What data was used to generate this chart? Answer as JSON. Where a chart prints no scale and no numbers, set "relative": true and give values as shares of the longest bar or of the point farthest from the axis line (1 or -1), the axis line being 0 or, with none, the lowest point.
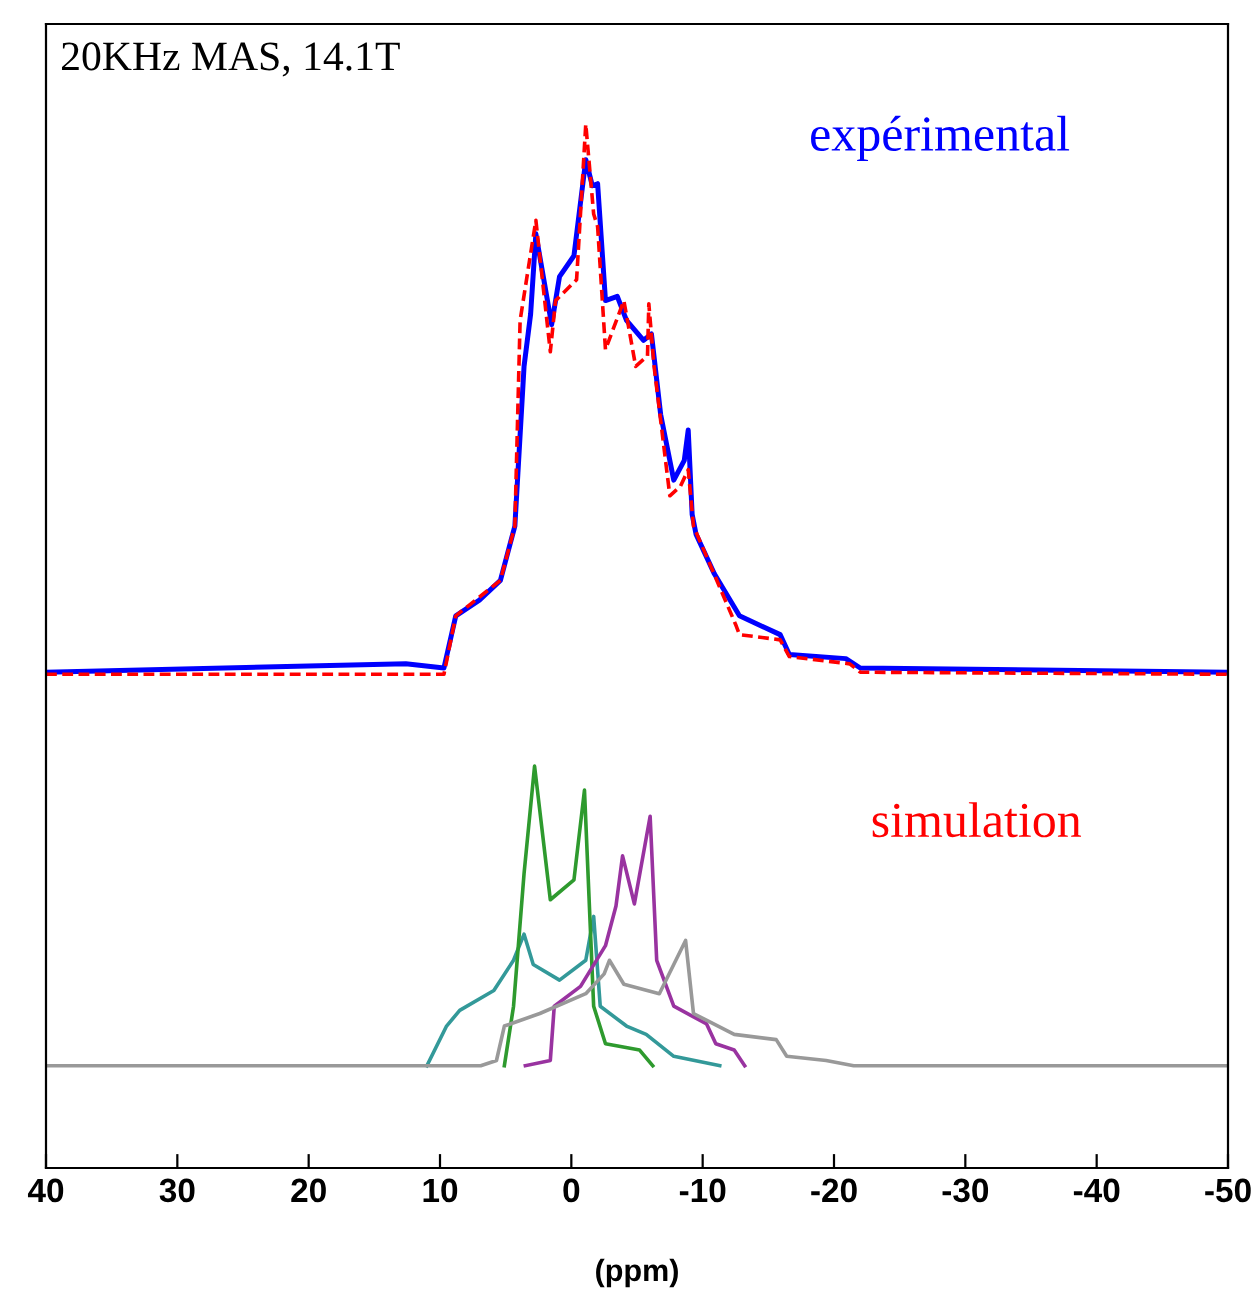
{
  "chart_data": {
    "type": "line",
    "relative": true,
    "xlabel": "(ppm)",
    "annotations": [
      "20KHz MAS, 14.1T"
    ],
    "xlim": [
      40,
      -50
    ],
    "xticks": [
      40,
      30,
      20,
      10,
      0,
      -10,
      -20,
      -30,
      -40,
      -50
    ],
    "tick_labels": "x",
    "grid": false,
    "legend": false,
    "marker": "none",
    "series": [
      {
        "name": "expérimental",
        "color": "#0000ff",
        "line_style": "solid",
        "x": [
          40,
          12.6,
          9.7,
          8.8,
          7.0,
          5.4,
          4.3,
          3.6,
          3.1,
          2.7,
          1.5,
          0.9,
          -0.2,
          -1.1,
          -1.6,
          -2.0,
          -2.6,
          -3.5,
          -4.2,
          -5.5,
          -6.1,
          -6.8,
          -7.8,
          -8.6,
          -8.9,
          -9.2,
          -9.5,
          -10.9,
          -12.8,
          -15.9,
          -16.6,
          -20.9,
          -22.0,
          -50
        ],
        "values": [
          0.475,
          0.483,
          0.479,
          0.529,
          0.544,
          0.563,
          0.615,
          0.768,
          0.818,
          0.895,
          0.808,
          0.854,
          0.874,
          0.966,
          0.941,
          0.943,
          0.831,
          0.835,
          0.812,
          0.793,
          0.799,
          0.722,
          0.659,
          0.678,
          0.707,
          0.626,
          0.607,
          0.569,
          0.529,
          0.511,
          0.492,
          0.488,
          0.479,
          0.475
        ]
      },
      {
        "name": "simulation",
        "color": "#ff0000",
        "line_style": "dashed",
        "x": [
          40,
          9.7,
          8.8,
          5.4,
          4.3,
          3.9,
          2.7,
          1.6,
          1.2,
          -0.4,
          -1.1,
          -1.7,
          -2.0,
          -2.6,
          -4.0,
          -4.9,
          -5.8,
          -5.9,
          -6.3,
          -7.5,
          -8.3,
          -8.9,
          -9.3,
          -10.6,
          -12.5,
          -12.8,
          -15.9,
          -16.6,
          -21.2,
          -22.0,
          -50
        ],
        "values": [
          0.473,
          0.473,
          0.529,
          0.563,
          0.615,
          0.812,
          0.908,
          0.782,
          0.831,
          0.851,
          1.0,
          0.914,
          0.902,
          0.784,
          0.831,
          0.768,
          0.778,
          0.828,
          0.768,
          0.644,
          0.653,
          0.669,
          0.615,
          0.577,
          0.521,
          0.511,
          0.506,
          0.49,
          0.483,
          0.475,
          0.473
        ]
      },
      {
        "color": "#339999",
        "line_style": "solid",
        "x": [
          11.0,
          9.5,
          8.5,
          5.9,
          4.4,
          3.6,
          2.9,
          0.9,
          -1.1,
          -1.7,
          -2.2,
          -4.2,
          -5.7,
          -7.8,
          -11.3
        ],
        "values": [
          0.098,
          0.136,
          0.151,
          0.17,
          0.199,
          0.224,
          0.195,
          0.18,
          0.199,
          0.241,
          0.155,
          0.136,
          0.128,
          0.107,
          0.098
        ]
      },
      {
        "color": "#2e9a2e",
        "line_style": "solid",
        "x": [
          5.1,
          4.4,
          3.6,
          2.8,
          1.6,
          -0.2,
          -1.0,
          -1.7,
          -2.6,
          -5.2,
          -6.2
        ],
        "values": [
          0.098,
          0.155,
          0.282,
          0.385,
          0.257,
          0.276,
          0.362,
          0.155,
          0.119,
          0.113,
          0.098
        ]
      },
      {
        "color": "#9933a0",
        "line_style": "solid",
        "x": [
          3.5,
          1.6,
          1.3,
          -0.7,
          -2.6,
          -3.4,
          -3.9,
          -4.8,
          -6.0,
          -6.5,
          -7.8,
          -10.3,
          -11.0,
          -12.4,
          -13.2
        ],
        "values": [
          0.098,
          0.103,
          0.155,
          0.174,
          0.213,
          0.251,
          0.299,
          0.253,
          0.337,
          0.199,
          0.155,
          0.138,
          0.119,
          0.113,
          0.098
        ]
      },
      {
        "color": "#999999",
        "line_style": "solid",
        "x": [
          40,
          6.9,
          5.7,
          5.1,
          2.4,
          -1.1,
          -2.5,
          -2.9,
          -4.0,
          -6.7,
          -8.7,
          -9.3,
          -12.4,
          -15.6,
          -16.4,
          -19.4,
          -21.5,
          -50
        ],
        "values": [
          0.098,
          0.098,
          0.103,
          0.136,
          0.148,
          0.167,
          0.186,
          0.199,
          0.176,
          0.167,
          0.218,
          0.148,
          0.128,
          0.123,
          0.107,
          0.103,
          0.098,
          0.098
        ]
      }
    ]
  }
}
